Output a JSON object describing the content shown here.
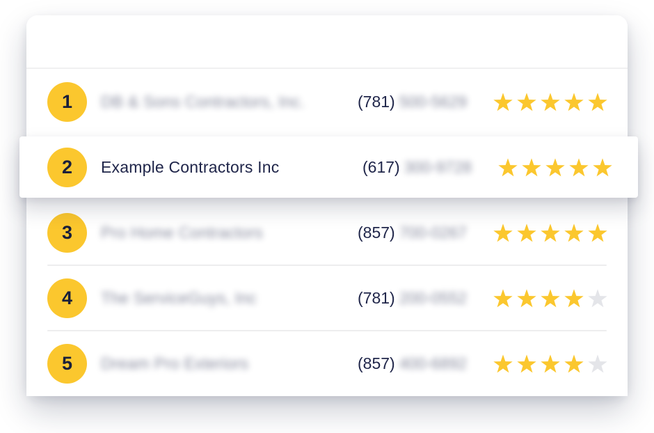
{
  "colors": {
    "badge_yellow": "#FBC72E",
    "star_filled": "#FBC72E",
    "star_empty": "#E4E5E9",
    "text_navy": "#20264A",
    "divider": "#EDEDEE"
  },
  "ranking_list": {
    "max_rating": 5,
    "rows": [
      {
        "rank": "1",
        "name": "DB & Sons Contractors, Inc.",
        "name_blurred": true,
        "phone_area": "(781)",
        "phone_rest": "500-5629",
        "phone_rest_blurred": true,
        "rating": 5,
        "highlighted": false
      },
      {
        "rank": "2",
        "name": "Example Contractors Inc",
        "name_blurred": false,
        "phone_area": "(617)",
        "phone_rest": "300-9728",
        "phone_rest_blurred": true,
        "rating": 5,
        "highlighted": true
      },
      {
        "rank": "3",
        "name": "Pro Home Contractors",
        "name_blurred": true,
        "phone_area": "(857)",
        "phone_rest": "700-0267",
        "phone_rest_blurred": true,
        "rating": 5,
        "highlighted": false
      },
      {
        "rank": "4",
        "name": "The ServiceGuys, Inc",
        "name_blurred": true,
        "phone_area": "(781)",
        "phone_rest": "200-0552",
        "phone_rest_blurred": true,
        "rating": 4,
        "highlighted": false
      },
      {
        "rank": "5",
        "name": "Dream Pro Exteriors",
        "name_blurred": true,
        "phone_area": "(857)",
        "phone_rest": "400-6892",
        "phone_rest_blurred": true,
        "rating": 4,
        "highlighted": false
      }
    ]
  }
}
